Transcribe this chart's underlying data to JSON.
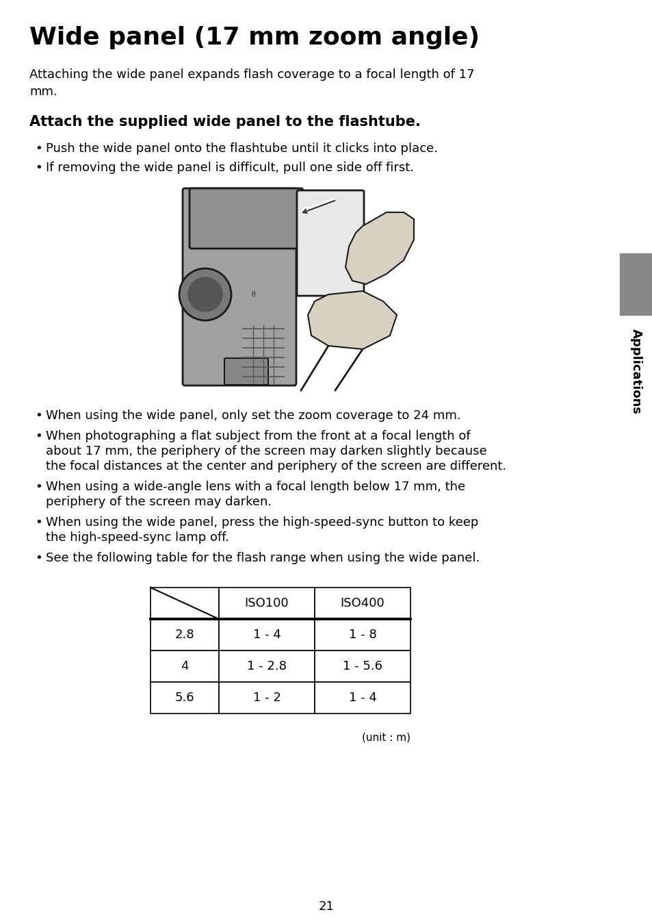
{
  "title": "Wide panel (17 mm zoom angle)",
  "subtitle": "Attaching the wide panel expands flash coverage to a focal length of 17\nmm.",
  "section_heading": "Attach the supplied wide panel to the flashtube.",
  "bullet1": "Push the wide panel onto the flashtube until it clicks into place.",
  "bullet2": "If removing the wide panel is difficult, pull one side off first.",
  "bbullet1": "When using the wide panel, only set the zoom coverage to 24 mm.",
  "bbullet2_l1": "When photographing a flat subject from the front at a focal length of",
  "bbullet2_l2": "about 17 mm, the periphery of the screen may darken slightly because",
  "bbullet2_l3": "the focal distances at the center and periphery of the screen are different.",
  "bbullet3_l1": "When using a wide-angle lens with a focal length below 17 mm, the",
  "bbullet3_l2": "periphery of the screen may darken.",
  "bbullet4_l1": "When using the wide panel, press the high-speed-sync button to keep",
  "bbullet4_l2": "the high-speed-sync lamp off.",
  "bbullet5": "See the following table for the flash range when using the wide panel.",
  "table_col1": "ISO100",
  "table_col2": "ISO400",
  "table_r1c0": "2.8",
  "table_r1c1": "1 - 4",
  "table_r1c2": "1 - 8",
  "table_r2c0": "4",
  "table_r2c1": "1 - 2.8",
  "table_r2c2": "1 - 5.6",
  "table_r3c0": "5.6",
  "table_r3c1": "1 - 2",
  "table_r3c2": "1 - 4",
  "table_unit": "(unit : m)",
  "sidebar_text": "Applications",
  "page_number": "21",
  "bg_color": "#ffffff",
  "sidebar_bg": "#888888",
  "text_color": "#000000",
  "title_fontsize": 26,
  "body_fontsize": 13,
  "section_fontsize": 15,
  "table_fontsize": 13
}
